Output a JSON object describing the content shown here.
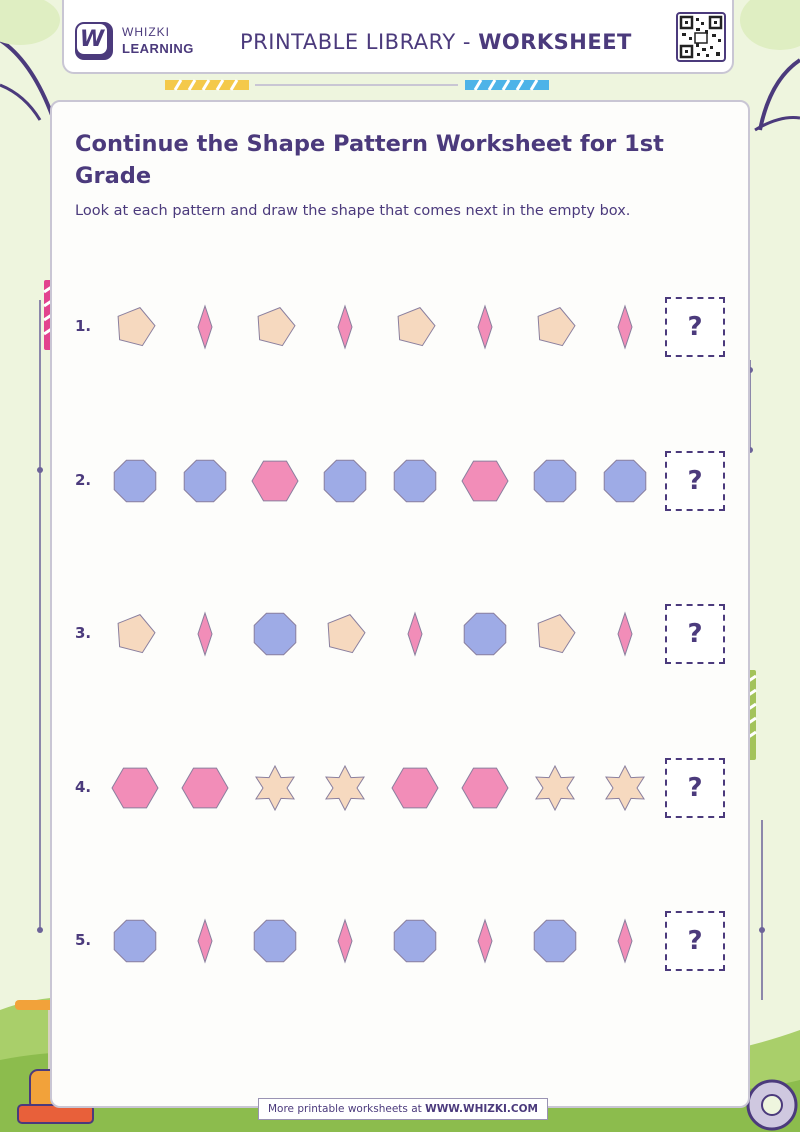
{
  "brand": {
    "logo_letter": "W",
    "name_line1": "WHIZKI",
    "name_line2": "LEARNING"
  },
  "header": {
    "title_prefix": "PRINTABLE LIBRARY - ",
    "title_bold": "WORKSHEET",
    "qr_icon": "qr-code-icon"
  },
  "worksheet": {
    "title": "Continue the Shape Pattern Worksheet for 1st Grade",
    "instructions": "Look at each pattern and draw the shape that comes next in the empty box.",
    "answer_placeholder": "?",
    "rows": [
      {
        "number": "1.",
        "shapes": [
          "pentagon",
          "rhombus",
          "pentagon",
          "rhombus",
          "pentagon",
          "rhombus",
          "pentagon",
          "rhombus"
        ]
      },
      {
        "number": "2.",
        "shapes": [
          "octagon",
          "octagon",
          "hexagon",
          "octagon",
          "octagon",
          "hexagon",
          "octagon",
          "octagon"
        ]
      },
      {
        "number": "3.",
        "shapes": [
          "pentagon",
          "rhombus",
          "octagon",
          "pentagon",
          "rhombus",
          "octagon",
          "pentagon",
          "rhombus"
        ]
      },
      {
        "number": "4.",
        "shapes": [
          "hexagon",
          "hexagon",
          "star",
          "star",
          "hexagon",
          "hexagon",
          "star",
          "star"
        ]
      },
      {
        "number": "5.",
        "shapes": [
          "octagon",
          "rhombus",
          "octagon",
          "rhombus",
          "octagon",
          "rhombus",
          "octagon",
          "rhombus"
        ]
      }
    ]
  },
  "colors": {
    "brand_purple": "#4b3a7c",
    "pentagon": "#f6d9bf",
    "star": "#f6d9bf",
    "rhombus": "#f28db8",
    "hexagon": "#f28db8",
    "octagon": "#9eabe6"
  },
  "footer": {
    "text_prefix": "More printable worksheets at ",
    "text_bold": "WWW.WHIZKI.COM"
  }
}
